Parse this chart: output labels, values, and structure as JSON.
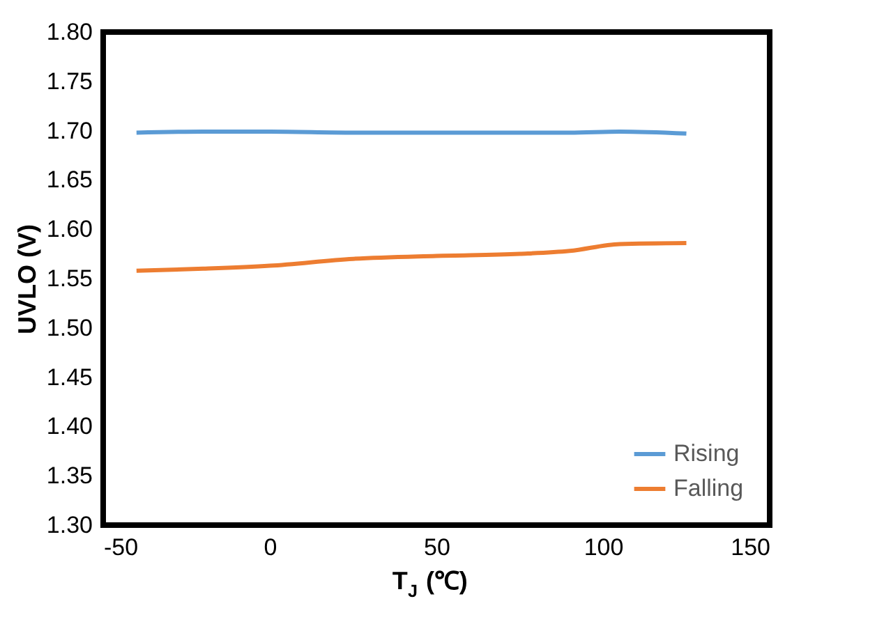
{
  "chart_data": {
    "type": "line",
    "xlabel": "T$_{J}$ (℃)",
    "ylabel": "UVLO (V)",
    "xlim": [
      -50,
      150
    ],
    "xticks": [
      -50,
      0,
      50,
      100,
      150
    ],
    "ylim": [
      1.3,
      1.8
    ],
    "yticks": [
      {
        "value": 1.3,
        "label": "1.30"
      },
      {
        "value": 1.35,
        "label": "1.35"
      },
      {
        "value": 1.4,
        "label": "1.40"
      },
      {
        "value": 1.45,
        "label": "1.45"
      },
      {
        "value": 1.5,
        "label": "1.50"
      },
      {
        "value": 1.55,
        "label": "1.55"
      },
      {
        "value": 1.6,
        "label": "1.60"
      },
      {
        "value": 1.65,
        "label": "1.65"
      },
      {
        "value": 1.7,
        "label": "1.70"
      },
      {
        "value": 1.75,
        "label": "1.75"
      },
      {
        "value": 1.8,
        "label": "1.80"
      }
    ],
    "grid": false,
    "legend": "bottom right",
    "marker": "none",
    "line_style": "solid",
    "series": [
      {
        "name": "Rising",
        "color": "#5b9bd5",
        "x": [
          -40,
          -20,
          0,
          25,
          50,
          75,
          90,
          105,
          125
        ],
        "values": [
          1.698,
          1.699,
          1.699,
          1.698,
          1.698,
          1.698,
          1.698,
          1.699,
          1.697
        ]
      },
      {
        "name": "Falling",
        "color": "#ed7d31",
        "x": [
          -40,
          -20,
          0,
          25,
          50,
          75,
          90,
          105,
          125
        ],
        "values": [
          1.558,
          1.56,
          1.563,
          1.57,
          1.573,
          1.575,
          1.578,
          1.585,
          1.586
        ]
      }
    ]
  }
}
